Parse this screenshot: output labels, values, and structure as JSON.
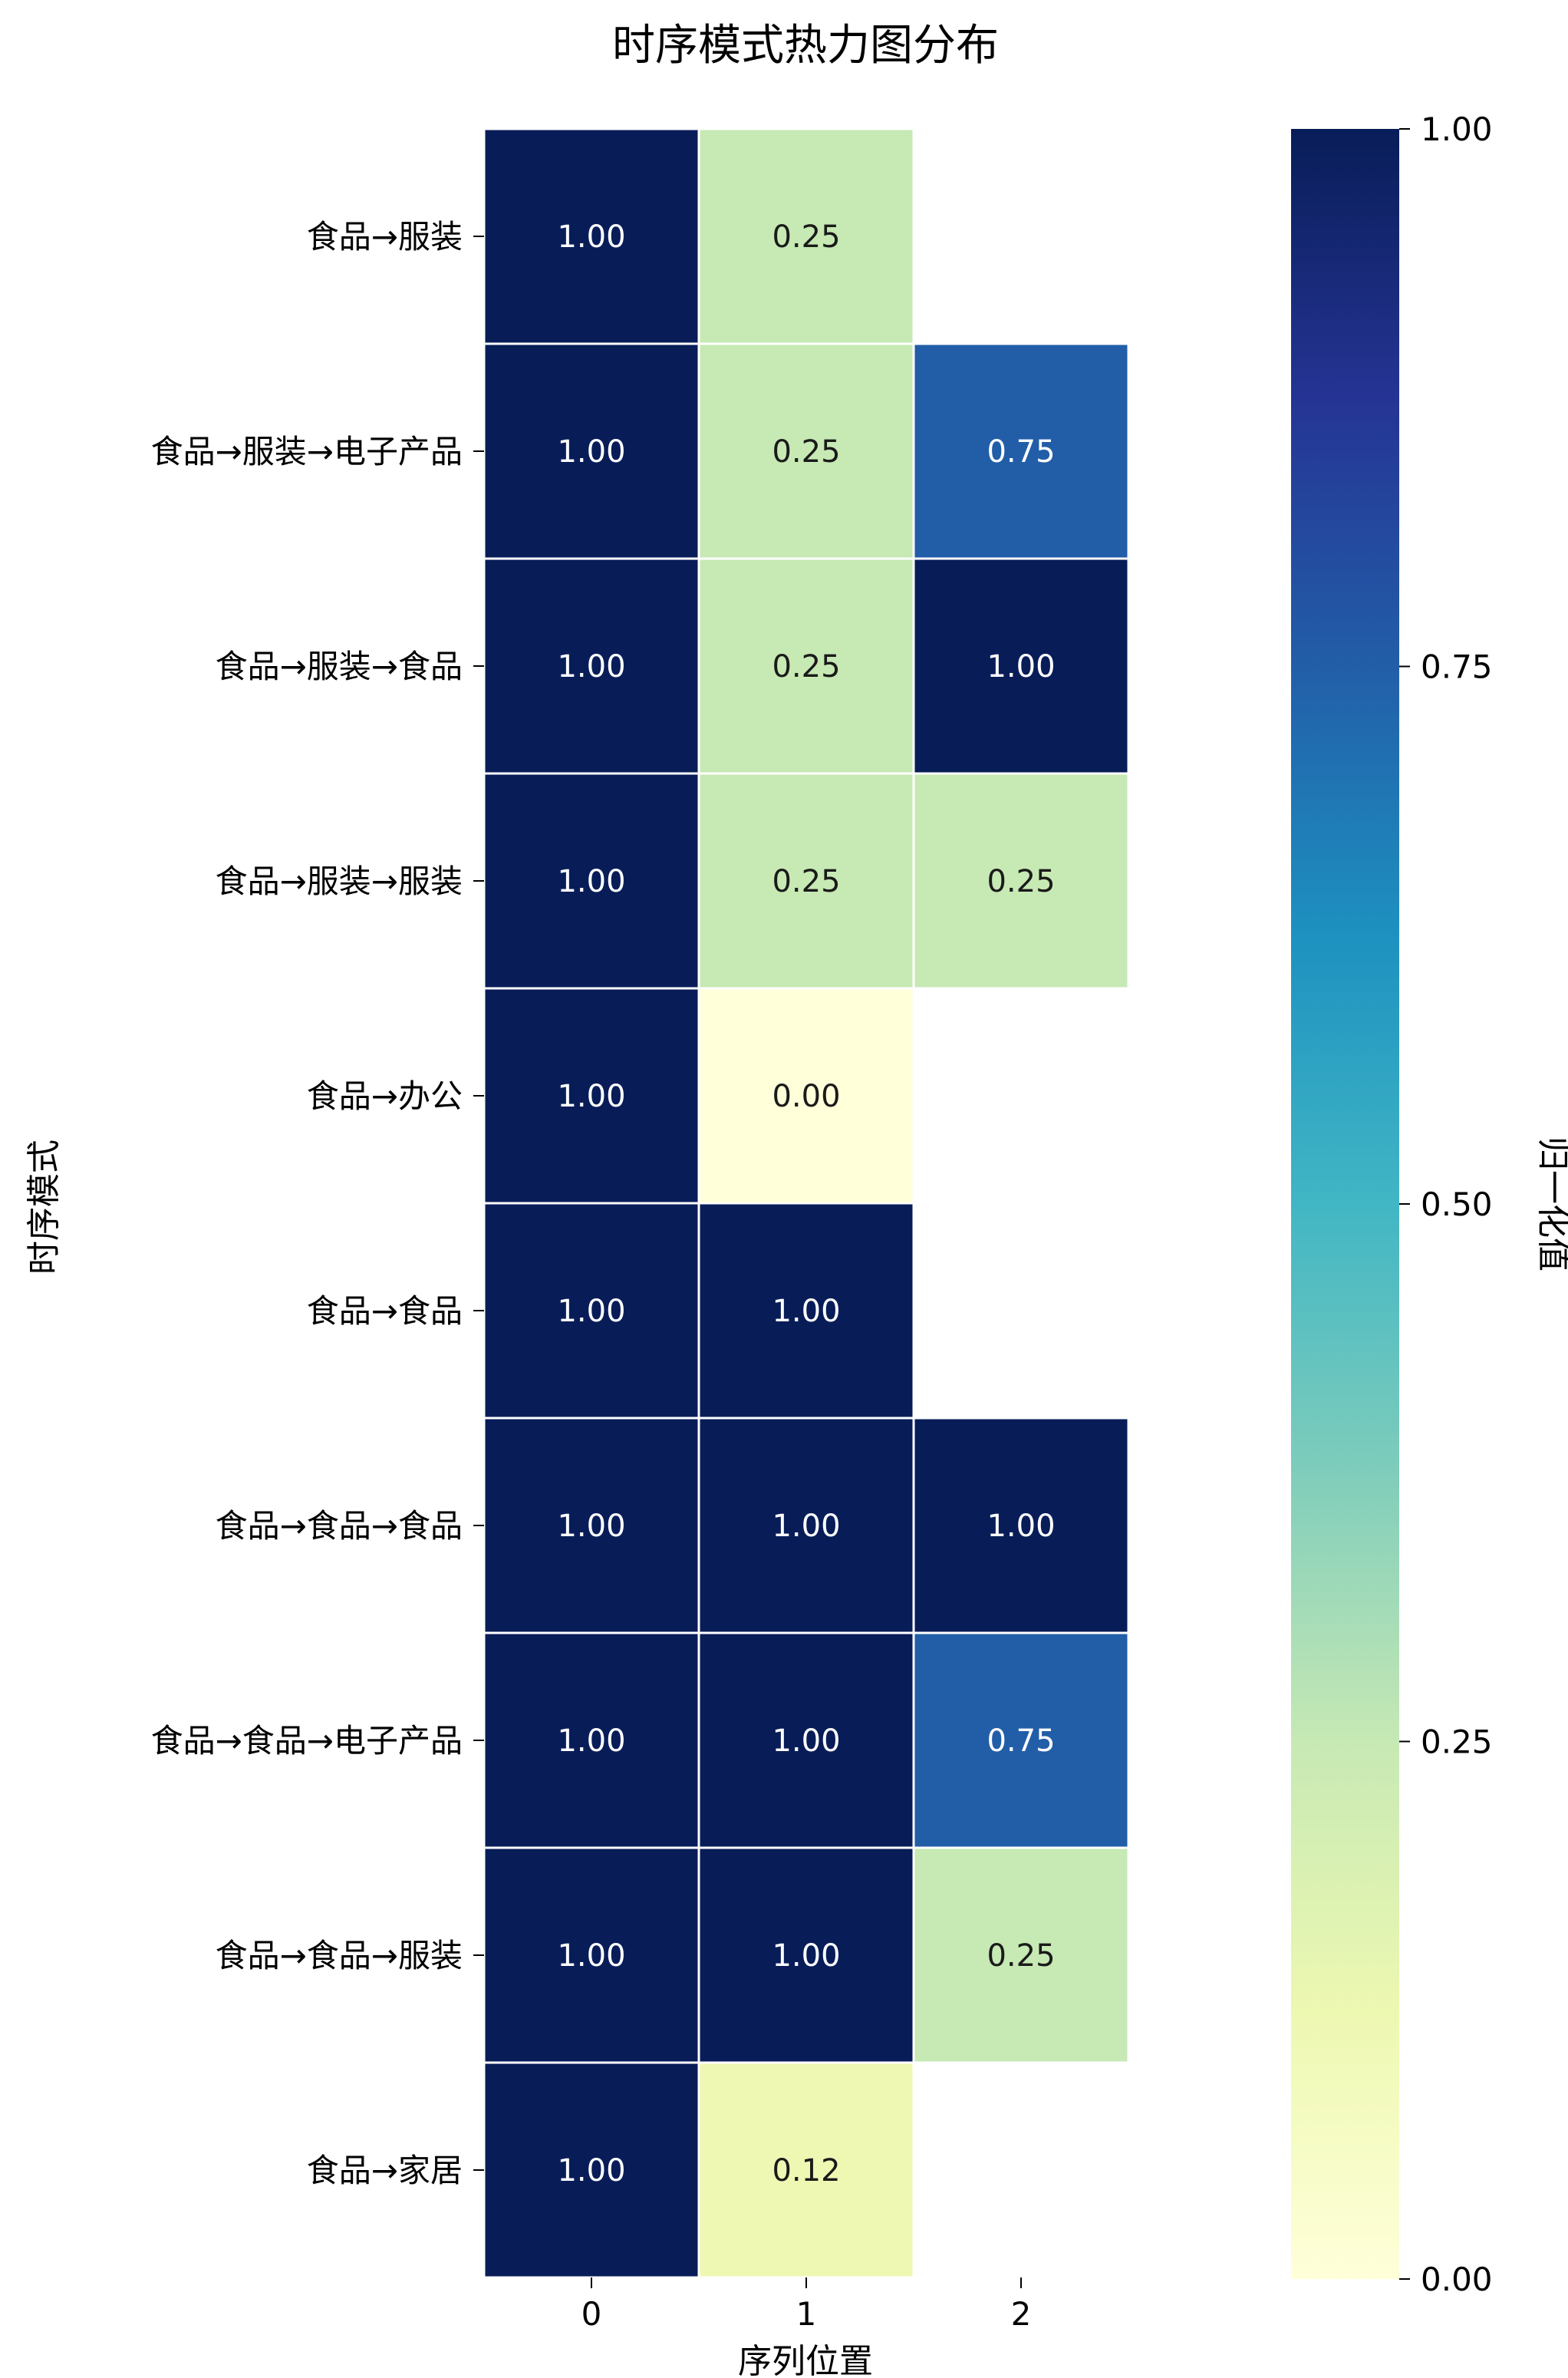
{
  "chart_data": {
    "type": "heatmap",
    "title": "时序模式热力图分布",
    "xlabel": "序列位置",
    "ylabel": "时序模式",
    "x_categories": [
      "0",
      "1",
      "2"
    ],
    "y_categories": [
      "食品→服装",
      "食品→服装→电子产品",
      "食品→服装→食品",
      "食品→服装→服装",
      "食品→办公",
      "食品→食品",
      "食品→食品→食品",
      "食品→食品→电子产品",
      "食品→食品→服装",
      "食品→家居"
    ],
    "values": [
      [
        1.0,
        0.25,
        null
      ],
      [
        1.0,
        0.25,
        0.75
      ],
      [
        1.0,
        0.25,
        1.0
      ],
      [
        1.0,
        0.25,
        0.25
      ],
      [
        1.0,
        0.0,
        null
      ],
      [
        1.0,
        1.0,
        null
      ],
      [
        1.0,
        1.0,
        1.0
      ],
      [
        1.0,
        1.0,
        0.75
      ],
      [
        1.0,
        1.0,
        0.25
      ],
      [
        1.0,
        0.12,
        null
      ]
    ],
    "colorbar": {
      "label": "归一化值",
      "range": [
        0,
        1
      ],
      "ticks": [
        "0.00",
        "0.25",
        "0.50",
        "0.75",
        "1.00"
      ],
      "colormap": "YlGnBu",
      "stops": [
        "#ffffd9",
        "#edf8b1",
        "#c7e9b4",
        "#7fcdbb",
        "#41b6c4",
        "#1d91c0",
        "#225ea8",
        "#253494",
        "#081d58"
      ]
    },
    "value_format": "0.00",
    "annotations": true,
    "cell_border_color": "#ffffff"
  }
}
